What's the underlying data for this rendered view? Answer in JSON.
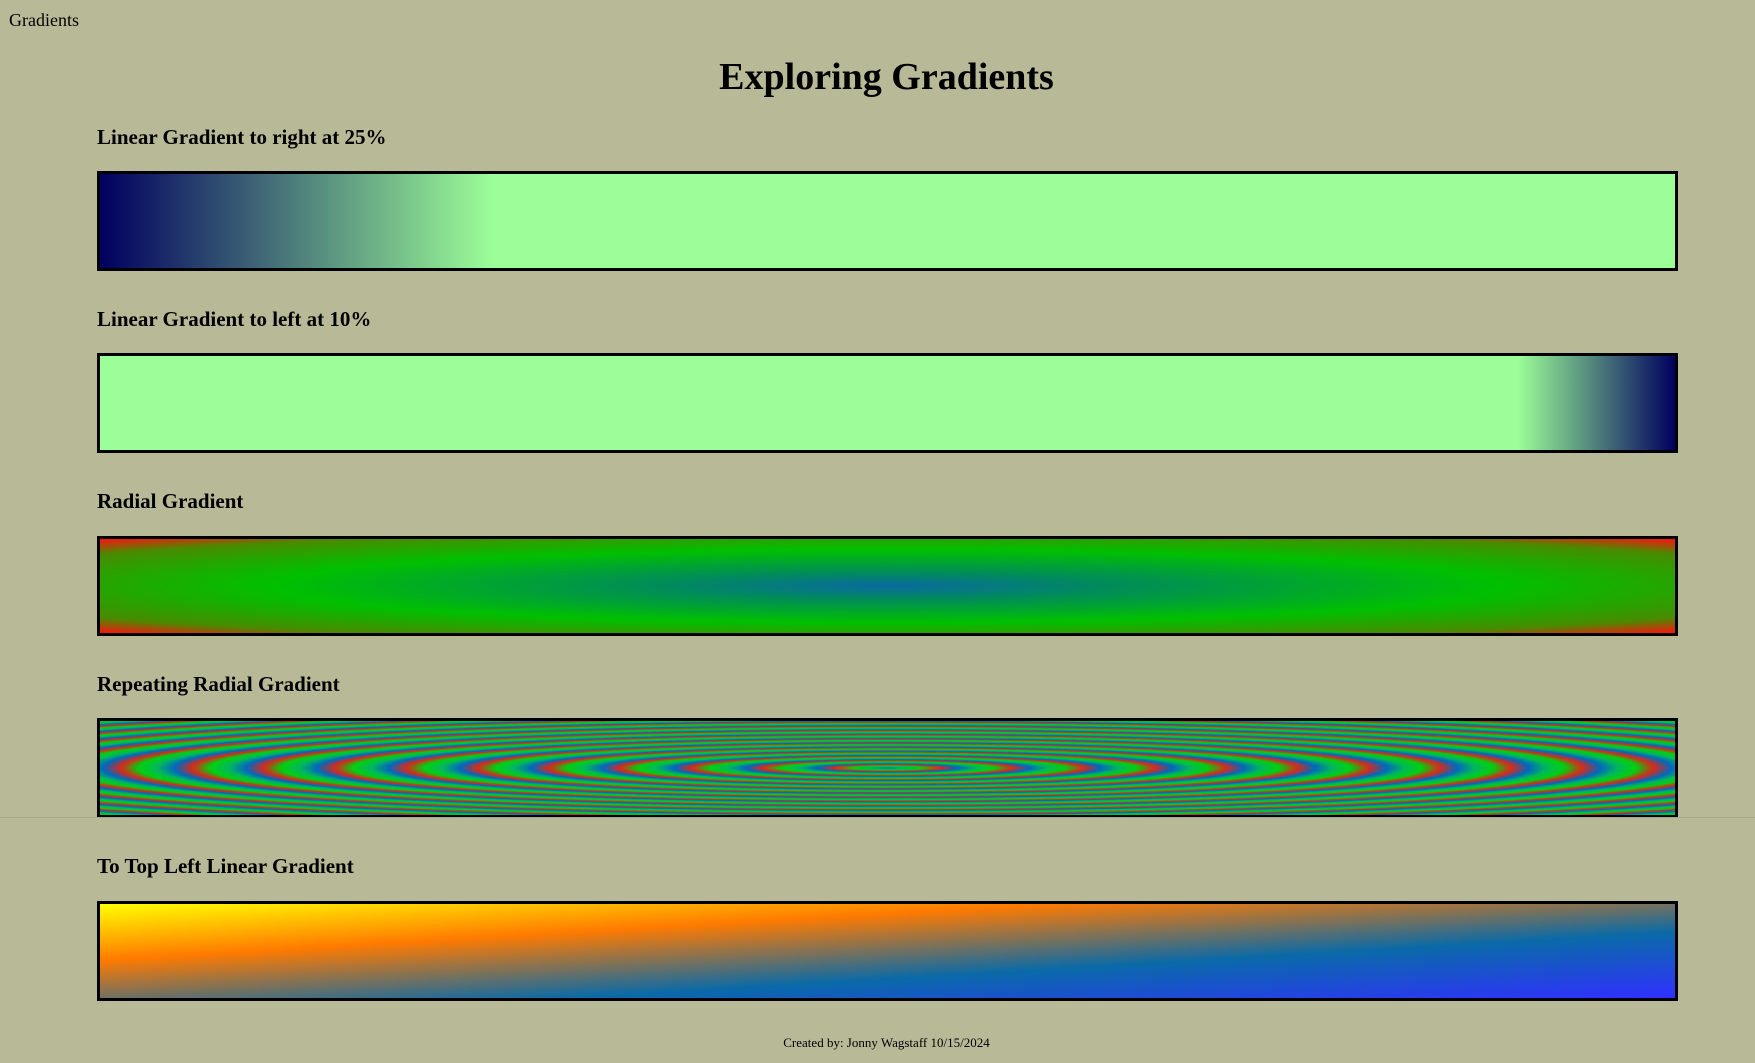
{
  "window": {
    "tab_title": "Gradients"
  },
  "page": {
    "title": "Exploring Gradients"
  },
  "sections": [
    {
      "heading": "Linear Gradient to right at 25%"
    },
    {
      "heading": "Linear Gradient to left at 10%"
    },
    {
      "heading": "Radial Gradient"
    },
    {
      "heading": "Repeating Radial Gradient"
    },
    {
      "heading": "To Top Left Linear Gradient"
    }
  ],
  "colors": {
    "background": "#b8b996",
    "navy": "#00005f",
    "light_green": "#9cfe98",
    "green": "#00c000",
    "red": "#ff1010",
    "blue": "#3030ff",
    "orange": "#ff7a00",
    "yellow": "#ffff00"
  },
  "footer": {
    "credit": "Created by: Jonny Wagstaff 10/15/2024"
  }
}
